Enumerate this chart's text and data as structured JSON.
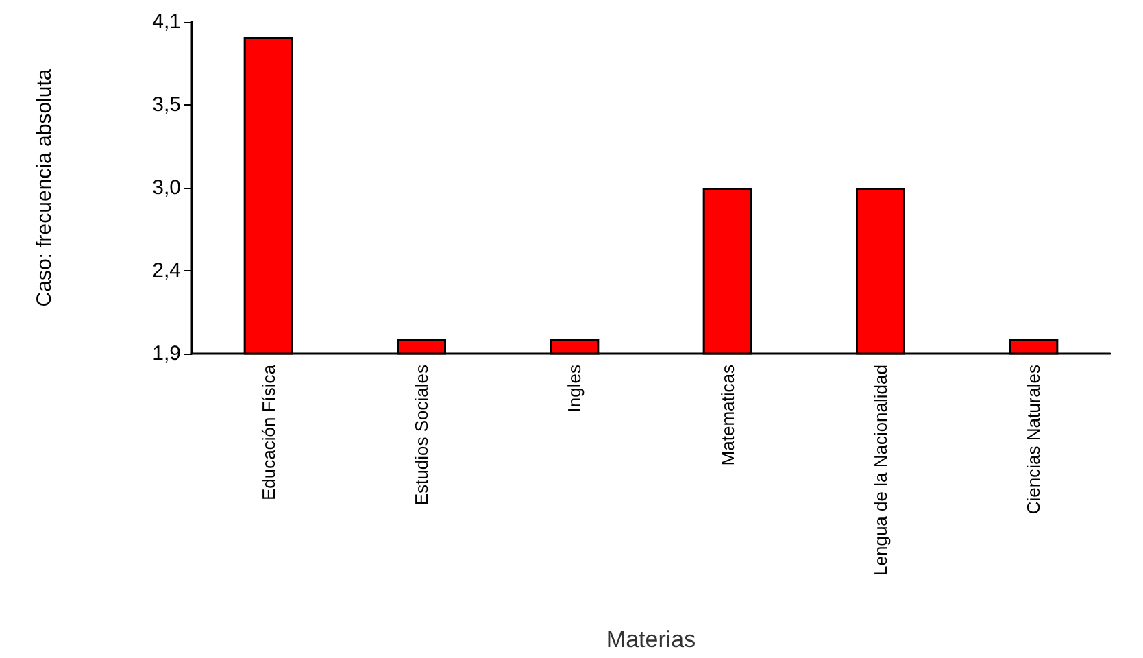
{
  "chart_data": {
    "type": "bar",
    "xlabel": "Materias",
    "ylabel": "Caso: frecuencia absoluta",
    "categories": [
      "Educación Física",
      "Estudios Sociales",
      "Ingles",
      "Matematicas",
      "Lengua de la Nacionalidad",
      "Ciencias Naturales"
    ],
    "values": [
      4,
      2,
      2,
      3,
      3,
      2
    ],
    "color": "#ff0000",
    "ylim": [
      1.9,
      4.1
    ],
    "yticks": [
      {
        "value": 1.9,
        "label": "1,9"
      },
      {
        "value": 2.45,
        "label": "2,4"
      },
      {
        "value": 3.0,
        "label": "3,0"
      },
      {
        "value": 3.55,
        "label": "3,5"
      },
      {
        "value": 4.1,
        "label": "4,1"
      }
    ],
    "grid": false
  }
}
